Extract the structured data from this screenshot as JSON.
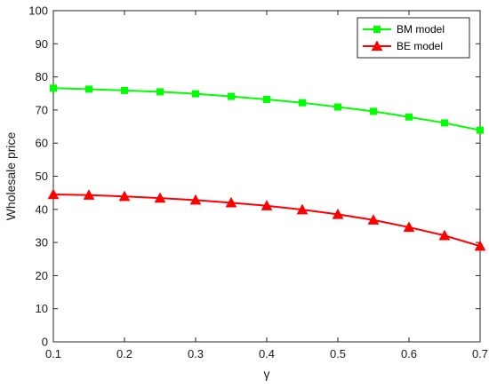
{
  "chart_data": {
    "type": "line",
    "xlabel": "γ",
    "ylabel": "Wholesale price",
    "xlim": [
      0.1,
      0.7
    ],
    "ylim": [
      0,
      100
    ],
    "x_ticks": [
      "0.1",
      "0.2",
      "0.3",
      "0.4",
      "0.5",
      "0.6",
      "0.7"
    ],
    "y_ticks": [
      "0",
      "10",
      "20",
      "30",
      "40",
      "50",
      "60",
      "70",
      "80",
      "90",
      "100"
    ],
    "grid": false,
    "legend_position": "top-right",
    "x": [
      0.1,
      0.15,
      0.2,
      0.25,
      0.3,
      0.35,
      0.4,
      0.45,
      0.5,
      0.55,
      0.6,
      0.65,
      0.7
    ],
    "series": [
      {
        "name": "BM model",
        "color": "#00ff00",
        "marker": "square",
        "values": [
          76.6,
          76.3,
          75.9,
          75.5,
          74.9,
          74.1,
          73.2,
          72.2,
          70.9,
          69.6,
          67.9,
          66.1,
          63.9
        ]
      },
      {
        "name": "BE model",
        "color": "#ff0000",
        "marker": "triangle",
        "values": [
          44.5,
          44.3,
          43.9,
          43.4,
          42.8,
          42.0,
          41.1,
          39.9,
          38.5,
          36.8,
          34.6,
          32.1,
          28.9
        ]
      }
    ]
  }
}
